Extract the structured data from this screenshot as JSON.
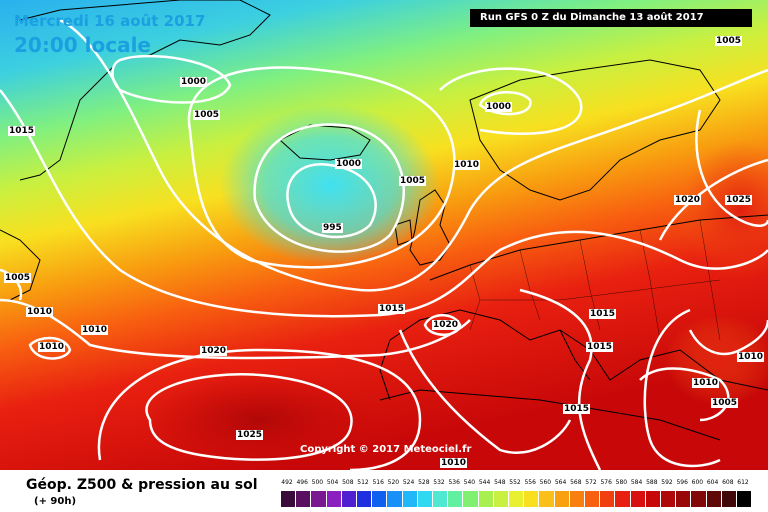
{
  "header": {
    "date_line": "Mercredi 16 août 2017",
    "time_line": "20:00 locale",
    "run_info": "Run GFS 0 Z du Dimanche 13 août 2017",
    "copyright": "Copyright © 2017 Meteociel.fr"
  },
  "pressure_labels": [
    {
      "text": "1000"
    },
    {
      "text": "1005"
    },
    {
      "text": "1015"
    },
    {
      "text": "1000"
    },
    {
      "text": "1000"
    },
    {
      "text": "1005"
    },
    {
      "text": "1010"
    },
    {
      "text": "995"
    },
    {
      "text": "1005"
    },
    {
      "text": "1020"
    },
    {
      "text": "1025"
    },
    {
      "text": "1005"
    },
    {
      "text": "1010"
    },
    {
      "text": "1010"
    },
    {
      "text": "1010"
    },
    {
      "text": "1015"
    },
    {
      "text": "1020"
    },
    {
      "text": "1020"
    },
    {
      "text": "1015"
    },
    {
      "text": "1015"
    },
    {
      "text": "1010"
    },
    {
      "text": "1010"
    },
    {
      "text": "1005"
    },
    {
      "text": "1015"
    },
    {
      "text": "1025"
    },
    {
      "text": "1010"
    }
  ],
  "legend": {
    "title": "Géop. Z500 & pression au sol",
    "subtitle": "(+ 90h)",
    "ticks": [
      "492",
      "496",
      "500",
      "504",
      "508",
      "512",
      "516",
      "520",
      "524",
      "528",
      "532",
      "536",
      "540",
      "544",
      "548",
      "552",
      "556",
      "560",
      "564",
      "568",
      "572",
      "576",
      "580",
      "584",
      "588",
      "592",
      "596",
      "600",
      "604",
      "608",
      "612"
    ],
    "colors": [
      "#3a0a3a",
      "#5a1060",
      "#7a1890",
      "#8a20c0",
      "#5020d0",
      "#2030e0",
      "#1060f0",
      "#1890f8",
      "#20b8f8",
      "#30d8f0",
      "#50e8d0",
      "#60f0a0",
      "#80f070",
      "#a8f050",
      "#c8f040",
      "#e8f030",
      "#f8e020",
      "#f8c018",
      "#f8a010",
      "#f88010",
      "#f86010",
      "#f04010",
      "#e82010",
      "#d81010",
      "#c80808",
      "#b00808",
      "#980808",
      "#800808",
      "#600808",
      "#400808",
      "#000000"
    ]
  },
  "colors": {
    "title_blue": "#1aa0e0",
    "isobar": "#ffffff",
    "coast": "#000000"
  }
}
